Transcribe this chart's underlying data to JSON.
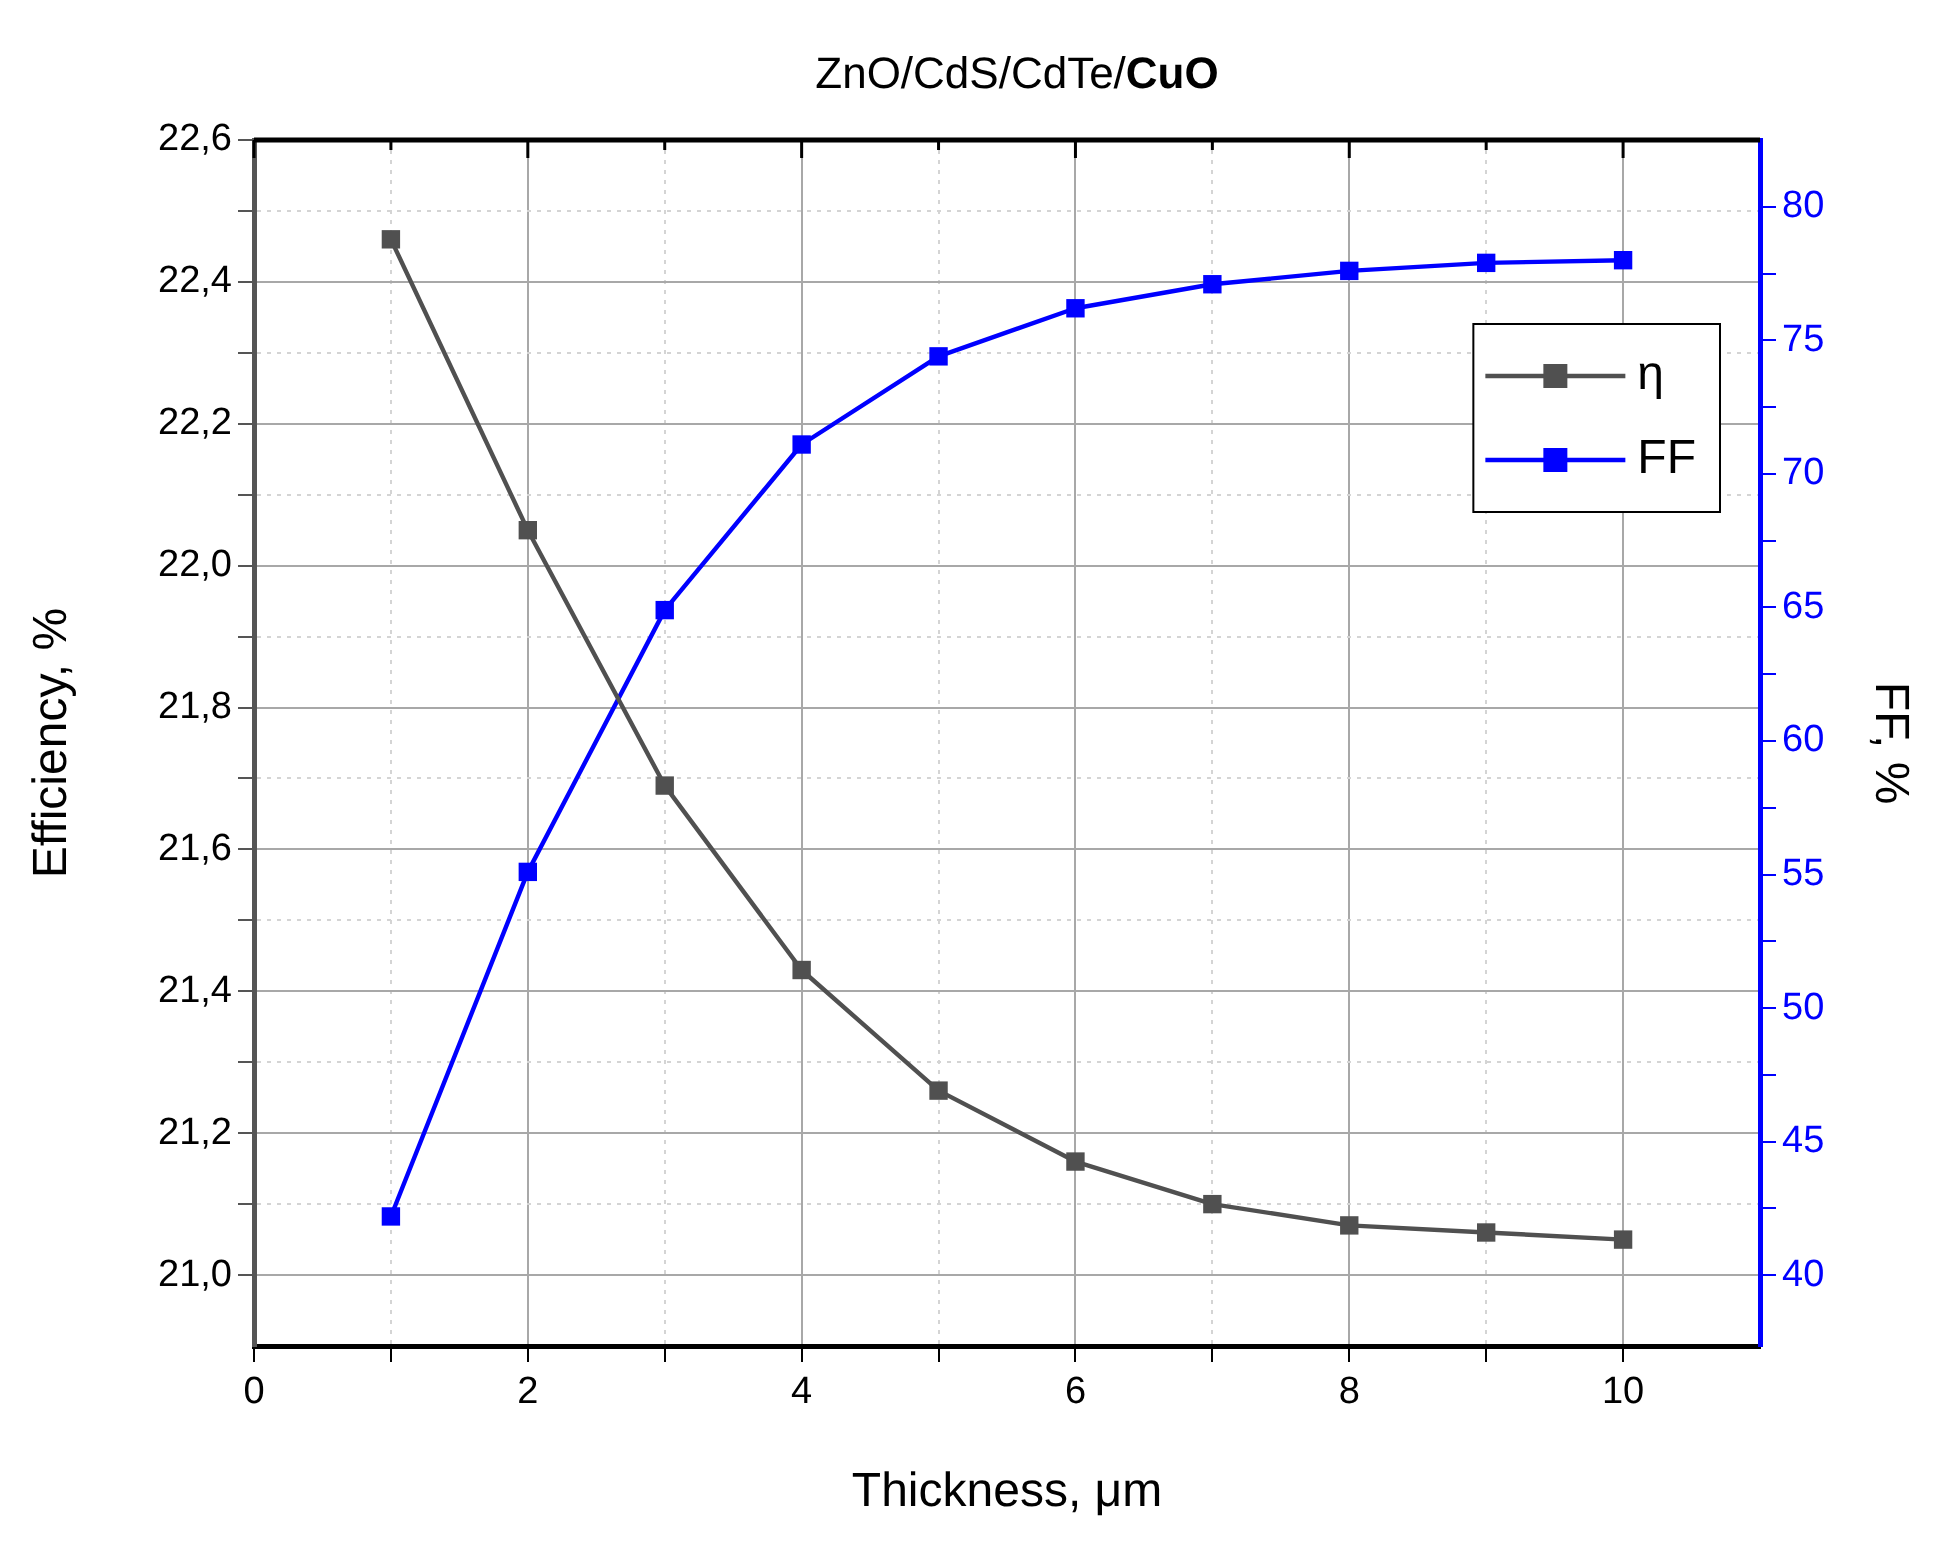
{
  "chart_data": {
    "type": "line",
    "title": "ZnO/CdS/CdTe/CuO",
    "xlabel": "Thickness, μm",
    "ylabel": "Efficiency, %",
    "y2label": "FF, %",
    "x": [
      1,
      2,
      3,
      4,
      5,
      6,
      7,
      8,
      9,
      10
    ],
    "series": [
      {
        "name": "η",
        "color": "#505050",
        "values": [
          22.46,
          22.05,
          21.69,
          21.43,
          21.26,
          21.16,
          21.1,
          21.07,
          21.06,
          21.05
        ]
      },
      {
        "name": "FF",
        "color": "#0000ff",
        "axis": "y2",
        "values": [
          42.2,
          55.1,
          64.9,
          71.1,
          74.4,
          76.2,
          77.1,
          77.6,
          77.9,
          78.0
        ]
      }
    ],
    "xlim": [
      0,
      11
    ],
    "xticks": [
      0,
      {
        "value": 1,
        "label": null
      },
      2,
      {
        "value": 3,
        "label": null
      },
      4,
      {
        "value": 5,
        "label": null
      },
      6,
      {
        "value": 7,
        "label": null
      },
      8,
      {
        "value": 9,
        "label": null
      },
      10
    ],
    "ylim": [
      20.9,
      22.6
    ],
    "yticks": [
      {
        "value": 21.0,
        "label": "21,0"
      },
      {
        "value": 21.1,
        "label": null
      },
      {
        "value": 21.2,
        "label": "21,2"
      },
      {
        "value": 21.3,
        "label": null
      },
      {
        "value": 21.4,
        "label": "21,4"
      },
      {
        "value": 21.5,
        "label": null
      },
      {
        "value": 21.6,
        "label": "21,6"
      },
      {
        "value": 21.7,
        "label": null
      },
      {
        "value": 21.8,
        "label": "21,8"
      },
      {
        "value": 21.9,
        "label": null
      },
      {
        "value": 22.0,
        "label": "22,0"
      },
      {
        "value": 22.1,
        "label": null
      },
      {
        "value": 22.2,
        "label": "22,2"
      },
      {
        "value": 22.3,
        "label": null
      },
      {
        "value": 22.4,
        "label": "22,4"
      },
      {
        "value": 22.5,
        "label": null
      },
      {
        "value": 22.6,
        "label": "22,6"
      }
    ],
    "y2lim": [
      37.35,
      82.5
    ],
    "y2ticks": [
      40,
      {
        "value": 42.5,
        "label": null
      },
      45,
      {
        "value": 47.5,
        "label": null
      },
      50,
      {
        "value": 52.5,
        "label": null
      },
      55,
      {
        "value": 57.5,
        "label": null
      },
      60,
      {
        "value": 62.5,
        "label": null
      },
      65,
      {
        "value": 67.5,
        "label": null
      },
      70,
      {
        "value": 72.5,
        "label": null
      },
      75,
      {
        "value": 77.5,
        "label": null
      },
      80
    ],
    "grid": true,
    "legend": "top right",
    "marker": "square",
    "line_style": "solid"
  }
}
